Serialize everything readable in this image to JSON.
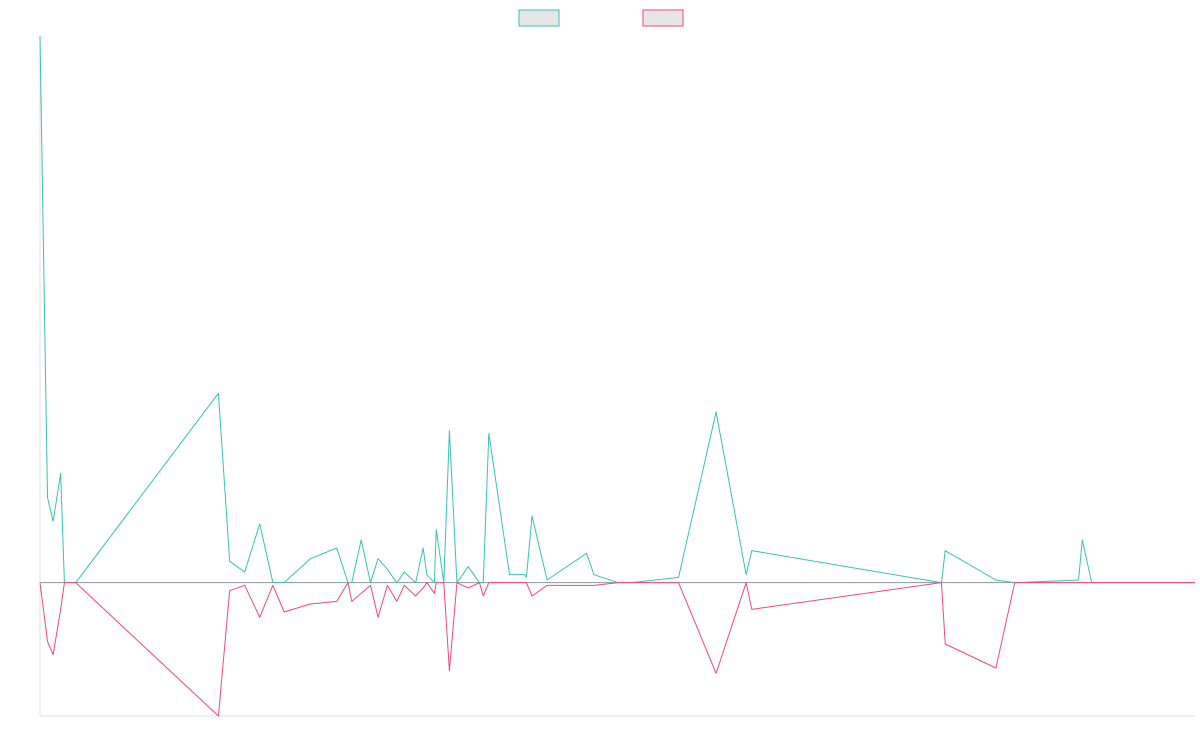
{
  "chart_data": {
    "type": "line",
    "title": "",
    "xlabel": "",
    "ylabel": "",
    "grid": false,
    "legend_position": "top-center",
    "x": [
      0,
      4,
      7,
      11,
      13,
      19,
      95,
      101,
      109,
      117,
      124,
      130,
      144,
      158,
      164,
      166,
      171,
      176,
      180,
      185,
      190,
      194,
      200,
      204,
      206,
      210,
      211,
      215,
      218,
      222,
      228,
      234,
      236,
      239,
      250,
      258,
      259,
      262,
      270,
      291,
      295,
      308,
      315,
      340,
      360,
      376,
      379,
      480,
      482,
      509,
      519,
      553,
      555,
      560,
      615
    ],
    "ylim": [
      -50,
      205
    ],
    "series": [
      {
        "name": "",
        "color": "#3bbfb8",
        "values": [
          205,
          32,
          23,
          41,
          0,
          0,
          71,
          8,
          4,
          22,
          0,
          0,
          9,
          13,
          0,
          0,
          16,
          0,
          9,
          5,
          0,
          4,
          0,
          13,
          3,
          0,
          20,
          0,
          57,
          0,
          6,
          0,
          0,
          56,
          3,
          3,
          2,
          25,
          1,
          11,
          3,
          0,
          0,
          2,
          64,
          3,
          12,
          0,
          12,
          1,
          0,
          1,
          16,
          0,
          0
        ]
      },
      {
        "name": "",
        "color": "#ea4b7a",
        "values": [
          0,
          -22,
          -27,
          -10,
          0,
          0,
          -50,
          -3,
          -1,
          -13,
          -1,
          -11,
          -8,
          -7,
          0,
          -7,
          -4,
          -1,
          -13,
          -1,
          -7,
          -1,
          -5,
          -2,
          0,
          -4,
          0,
          0,
          -33,
          0,
          -2,
          0,
          -5,
          0,
          0,
          0,
          0,
          -5,
          -1,
          -1,
          -1,
          0,
          0,
          0,
          -34,
          0,
          -10,
          0,
          -23,
          -32,
          0,
          0,
          0,
          0,
          0
        ]
      }
    ]
  }
}
